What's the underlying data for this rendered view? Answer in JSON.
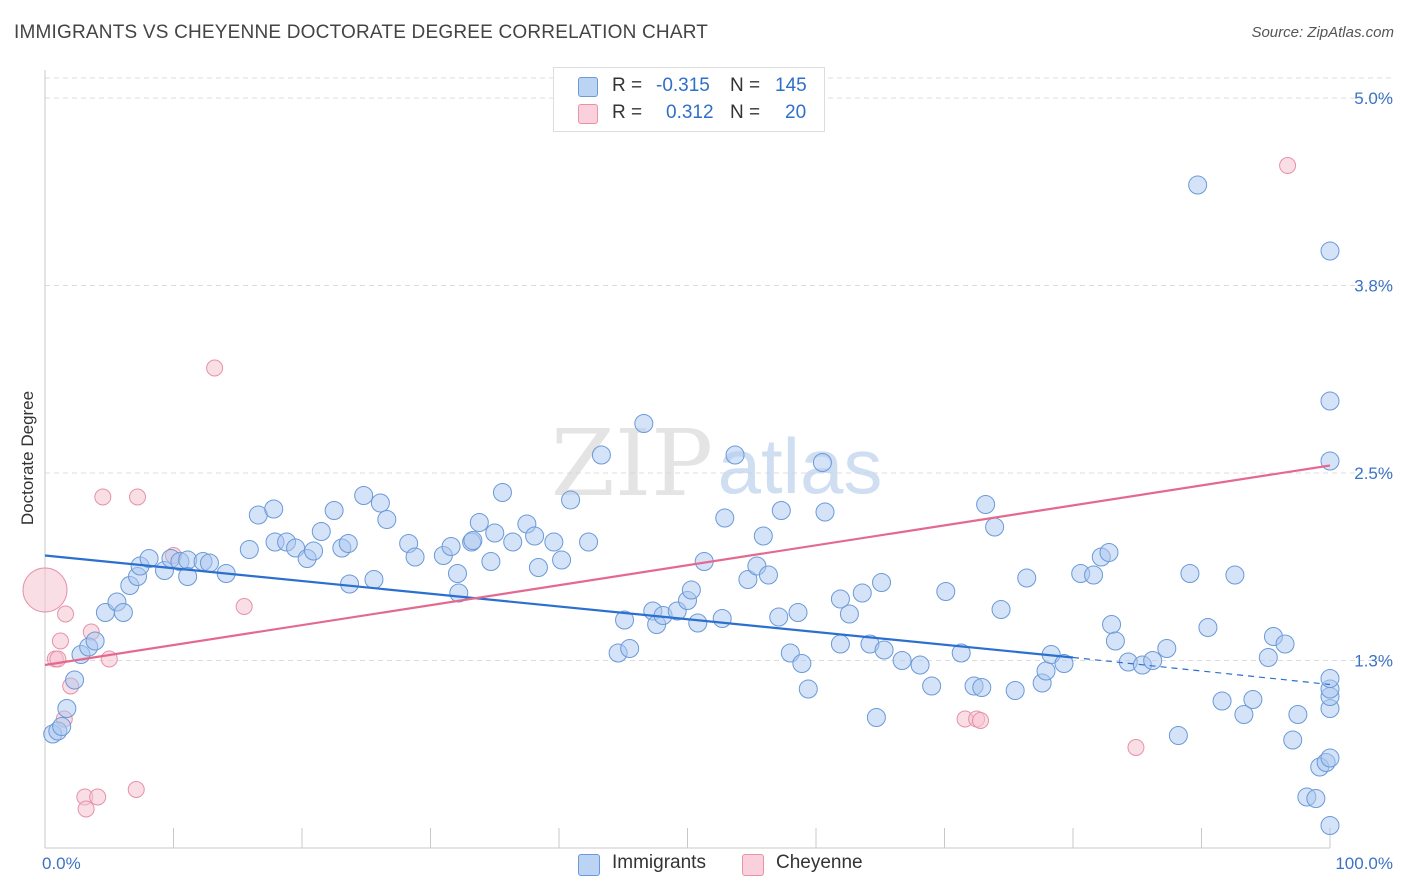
{
  "title": "IMMIGRANTS VS CHEYENNE DOCTORATE DEGREE CORRELATION CHART",
  "source": "Source: ZipAtlas.com",
  "watermark": {
    "part1": "ZIP",
    "part2": "atlas"
  },
  "colors": {
    "blue_fill": "#a9c8ef",
    "blue_stroke": "#6b9ad8",
    "blue_line": "#2b6fcf",
    "pink_fill": "#f6c3d1",
    "pink_stroke": "#e592aa",
    "pink_line": "#e4698f",
    "label_blue": "#3b73c4"
  },
  "legend": {
    "rows": [
      {
        "r_label": "R =",
        "r_value": "-0.315",
        "n_label": "N =",
        "n_value": "145"
      },
      {
        "r_label": "R =",
        "r_value": "0.312",
        "n_label": "N =",
        "n_value": "20"
      }
    ]
  },
  "bottom_legend": {
    "immigrants": "Immigrants",
    "cheyenne": "Cheyenne"
  },
  "chart_data": {
    "type": "scatter",
    "title": "IMMIGRANTS VS CHEYENNE DOCTORATE DEGREE CORRELATION CHART",
    "xlabel": "",
    "ylabel": "Doctorate Degree",
    "xlim": [
      0,
      100
    ],
    "ylim": [
      0,
      5.0
    ],
    "x_tick_labels": [
      "0.0%",
      "100.0%"
    ],
    "y_ticks": [
      1.25,
      2.5,
      3.75,
      5.0
    ],
    "y_tick_labels": [
      "1.3%",
      "2.5%",
      "3.8%",
      "5.0%"
    ],
    "series": [
      {
        "name": "Immigrants",
        "r": -0.315,
        "n": 145,
        "trend": {
          "x0": 0,
          "y0": 1.95,
          "x1": 80,
          "y1": 1.27,
          "dash_to_x": 100,
          "dash_to_y": 1.09
        },
        "points": [
          [
            0.6,
            0.76,
            12
          ],
          [
            1.0,
            0.78,
            12
          ],
          [
            1.3,
            0.81,
            12
          ],
          [
            1.7,
            0.93,
            12
          ],
          [
            2.3,
            1.12,
            12
          ],
          [
            2.8,
            1.29,
            12
          ],
          [
            3.4,
            1.34,
            12
          ],
          [
            3.9,
            1.38,
            12
          ],
          [
            4.7,
            1.57,
            12
          ],
          [
            5.6,
            1.64,
            12
          ],
          [
            6.1,
            1.57,
            12
          ],
          [
            6.6,
            1.75,
            12
          ],
          [
            7.2,
            1.81,
            12
          ],
          [
            7.4,
            1.88,
            12
          ],
          [
            8.1,
            1.93,
            12
          ],
          [
            9.3,
            1.85,
            12
          ],
          [
            9.8,
            1.93,
            12
          ],
          [
            10.5,
            1.91,
            12
          ],
          [
            11.1,
            1.92,
            12
          ],
          [
            11.1,
            1.81,
            12
          ],
          [
            12.3,
            1.91,
            12
          ],
          [
            12.8,
            1.9,
            12
          ],
          [
            14.1,
            1.83,
            12
          ],
          [
            15.9,
            1.99,
            12
          ],
          [
            16.6,
            2.22,
            12
          ],
          [
            17.8,
            2.26,
            12
          ],
          [
            17.9,
            2.04,
            12
          ],
          [
            18.8,
            2.04,
            12
          ],
          [
            19.5,
            2.0,
            12
          ],
          [
            20.4,
            1.93,
            12
          ],
          [
            20.9,
            1.98,
            12
          ],
          [
            21.5,
            2.11,
            12
          ],
          [
            22.5,
            2.25,
            12
          ],
          [
            23.1,
            2.0,
            12
          ],
          [
            23.6,
            2.03,
            12
          ],
          [
            23.7,
            1.76,
            12
          ],
          [
            24.8,
            2.35,
            12
          ],
          [
            25.6,
            1.79,
            12
          ],
          [
            26.1,
            2.3,
            12
          ],
          [
            26.6,
            2.19,
            12
          ],
          [
            28.3,
            2.03,
            12
          ],
          [
            28.8,
            1.94,
            12
          ],
          [
            31.0,
            1.95,
            12
          ],
          [
            31.6,
            2.01,
            12
          ],
          [
            32.1,
            1.83,
            12
          ],
          [
            32.2,
            1.7,
            12
          ],
          [
            33.2,
            2.04,
            12
          ],
          [
            33.3,
            2.05,
            12
          ],
          [
            33.8,
            2.17,
            12
          ],
          [
            34.7,
            1.91,
            12
          ],
          [
            35.0,
            2.1,
            12
          ],
          [
            35.6,
            2.37,
            12
          ],
          [
            36.4,
            2.04,
            12
          ],
          [
            37.5,
            2.16,
            12
          ],
          [
            38.1,
            2.08,
            12
          ],
          [
            38.4,
            1.87,
            12
          ],
          [
            39.6,
            2.04,
            12
          ],
          [
            40.2,
            1.92,
            12
          ],
          [
            40.9,
            2.32,
            12
          ],
          [
            42.3,
            2.04,
            12
          ],
          [
            43.3,
            2.62,
            12
          ],
          [
            44.6,
            1.3,
            12
          ],
          [
            45.1,
            1.52,
            12
          ],
          [
            45.5,
            1.33,
            12
          ],
          [
            46.6,
            2.83,
            12
          ],
          [
            47.3,
            1.58,
            12
          ],
          [
            47.6,
            1.49,
            12
          ],
          [
            48.1,
            1.55,
            12
          ],
          [
            49.2,
            1.58,
            12
          ],
          [
            50.0,
            1.65,
            12
          ],
          [
            50.3,
            1.72,
            12
          ],
          [
            50.8,
            1.5,
            12
          ],
          [
            51.3,
            1.91,
            12
          ],
          [
            52.7,
            1.53,
            12
          ],
          [
            52.9,
            2.2,
            12
          ],
          [
            53.7,
            2.62,
            12
          ],
          [
            54.7,
            1.79,
            12
          ],
          [
            55.4,
            1.88,
            12
          ],
          [
            55.9,
            2.08,
            12
          ],
          [
            56.3,
            1.82,
            12
          ],
          [
            57.1,
            1.54,
            12
          ],
          [
            57.3,
            2.25,
            12
          ],
          [
            58.0,
            1.3,
            12
          ],
          [
            58.6,
            1.57,
            12
          ],
          [
            58.9,
            1.23,
            12
          ],
          [
            59.4,
            1.06,
            12
          ],
          [
            60.5,
            2.57,
            12
          ],
          [
            60.7,
            2.24,
            12
          ],
          [
            61.9,
            1.66,
            12
          ],
          [
            61.9,
            1.36,
            12
          ],
          [
            62.6,
            1.56,
            12
          ],
          [
            63.6,
            1.7,
            12
          ],
          [
            64.2,
            1.36,
            12
          ],
          [
            64.7,
            0.87,
            12
          ],
          [
            65.1,
            1.77,
            12
          ],
          [
            65.3,
            1.32,
            12
          ],
          [
            66.7,
            1.25,
            12
          ],
          [
            68.1,
            1.22,
            12
          ],
          [
            69.0,
            1.08,
            12
          ],
          [
            70.1,
            1.71,
            12
          ],
          [
            71.3,
            1.3,
            12
          ],
          [
            72.3,
            1.08,
            12
          ],
          [
            72.9,
            1.07,
            12
          ],
          [
            73.2,
            2.29,
            12
          ],
          [
            73.9,
            2.14,
            12
          ],
          [
            74.4,
            1.59,
            12
          ],
          [
            75.5,
            1.05,
            12
          ],
          [
            76.4,
            1.8,
            12
          ],
          [
            77.6,
            1.1,
            12
          ],
          [
            77.9,
            1.18,
            12
          ],
          [
            78.3,
            1.29,
            12
          ],
          [
            79.3,
            1.23,
            12
          ],
          [
            80.6,
            1.83,
            12
          ],
          [
            81.6,
            1.82,
            12
          ],
          [
            82.2,
            1.94,
            12
          ],
          [
            82.8,
            1.97,
            12
          ],
          [
            83.0,
            1.49,
            12
          ],
          [
            83.3,
            1.38,
            12
          ],
          [
            84.3,
            1.24,
            12
          ],
          [
            85.4,
            1.22,
            12
          ],
          [
            86.2,
            1.25,
            12
          ],
          [
            87.3,
            1.33,
            12
          ],
          [
            88.2,
            0.75,
            12
          ],
          [
            89.1,
            1.83,
            12
          ],
          [
            89.7,
            4.42,
            12
          ],
          [
            90.5,
            1.47,
            12
          ],
          [
            91.6,
            0.98,
            12
          ],
          [
            92.6,
            1.82,
            12
          ],
          [
            93.3,
            0.89,
            12
          ],
          [
            94.0,
            0.99,
            12
          ],
          [
            95.2,
            1.27,
            12
          ],
          [
            95.6,
            1.41,
            12
          ],
          [
            96.5,
            1.36,
            12
          ],
          [
            97.1,
            0.72,
            12
          ],
          [
            97.5,
            0.89,
            12
          ],
          [
            98.2,
            0.34,
            12
          ],
          [
            98.9,
            0.33,
            12
          ],
          [
            99.2,
            0.54,
            12
          ],
          [
            99.7,
            0.57,
            12
          ],
          [
            100.0,
            0.15,
            12
          ],
          [
            100.0,
            0.6,
            12
          ],
          [
            100.0,
            0.93,
            12
          ],
          [
            100.0,
            1.01,
            12
          ],
          [
            100.0,
            1.06,
            12
          ],
          [
            100.0,
            1.13,
            12
          ],
          [
            100.0,
            2.58,
            12
          ],
          [
            100.0,
            2.98,
            12
          ],
          [
            100.0,
            3.98,
            12
          ]
        ]
      },
      {
        "name": "Cheyenne",
        "r": 0.312,
        "n": 20,
        "trend": {
          "x0": 0,
          "y0": 1.22,
          "x1": 100,
          "y1": 2.55
        },
        "points": [
          [
            0,
            1.72,
            30
          ],
          [
            0.8,
            1.26,
            12
          ],
          [
            1.0,
            1.26,
            12
          ],
          [
            1.2,
            1.38,
            12
          ],
          [
            1.5,
            0.86,
            12
          ],
          [
            1.6,
            1.56,
            12
          ],
          [
            2.0,
            1.08,
            12
          ],
          [
            3.1,
            0.34,
            12
          ],
          [
            3.2,
            0.26,
            12
          ],
          [
            3.6,
            1.44,
            12
          ],
          [
            4.1,
            0.34,
            12
          ],
          [
            4.5,
            2.34,
            12
          ],
          [
            5.0,
            1.26,
            12
          ],
          [
            7.1,
            0.39,
            12
          ],
          [
            7.2,
            2.34,
            12
          ],
          [
            10.0,
            1.95,
            12
          ],
          [
            13.2,
            3.2,
            12
          ],
          [
            15.5,
            1.61,
            12
          ],
          [
            71.6,
            0.86,
            12
          ],
          [
            72.5,
            0.86,
            12
          ],
          [
            72.8,
            0.85,
            12
          ],
          [
            84.9,
            0.67,
            12
          ],
          [
            96.7,
            4.55,
            12
          ]
        ]
      }
    ]
  }
}
